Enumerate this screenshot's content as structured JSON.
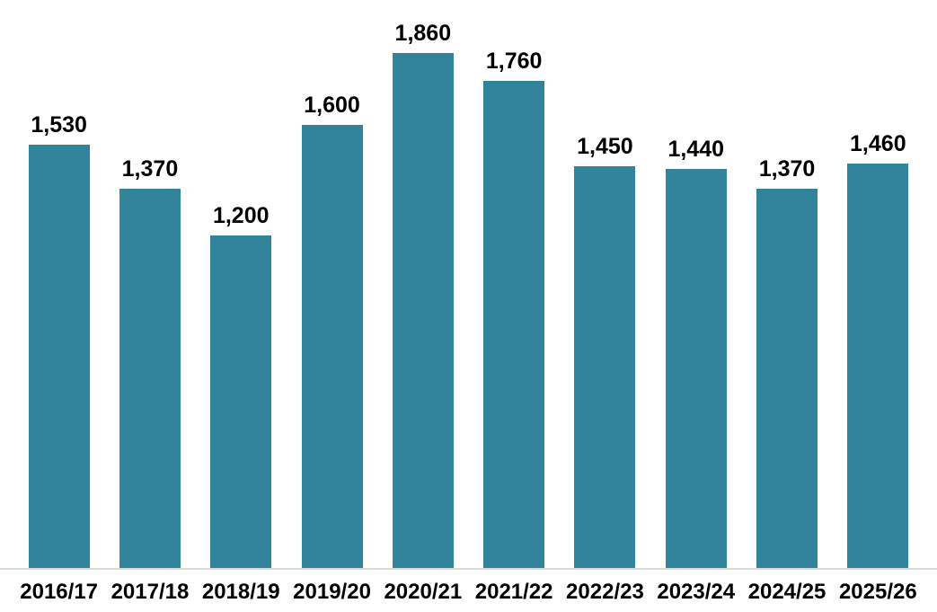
{
  "chart_data": {
    "type": "bar",
    "title": "",
    "xlabel": "",
    "ylabel": "",
    "categories": [
      "2016/17",
      "2017/18",
      "2018/19",
      "2019/20",
      "2020/21",
      "2021/22",
      "2022/23",
      "2023/24",
      "2024/25",
      "2025/26"
    ],
    "values": [
      1530,
      1370,
      1200,
      1600,
      1860,
      1760,
      1450,
      1440,
      1370,
      1460
    ],
    "value_labels": [
      "1,530",
      "1,370",
      "1,200",
      "1,600",
      "1,860",
      "1,760",
      "1,450",
      "1,440",
      "1,370",
      "1,460"
    ],
    "ylim": [
      0,
      1860
    ],
    "grid": false,
    "legend": false,
    "y_axis_visible": false,
    "bar_color": "#31849b",
    "axis_line_color": "#d9d9d9",
    "label_color": "#000000"
  }
}
